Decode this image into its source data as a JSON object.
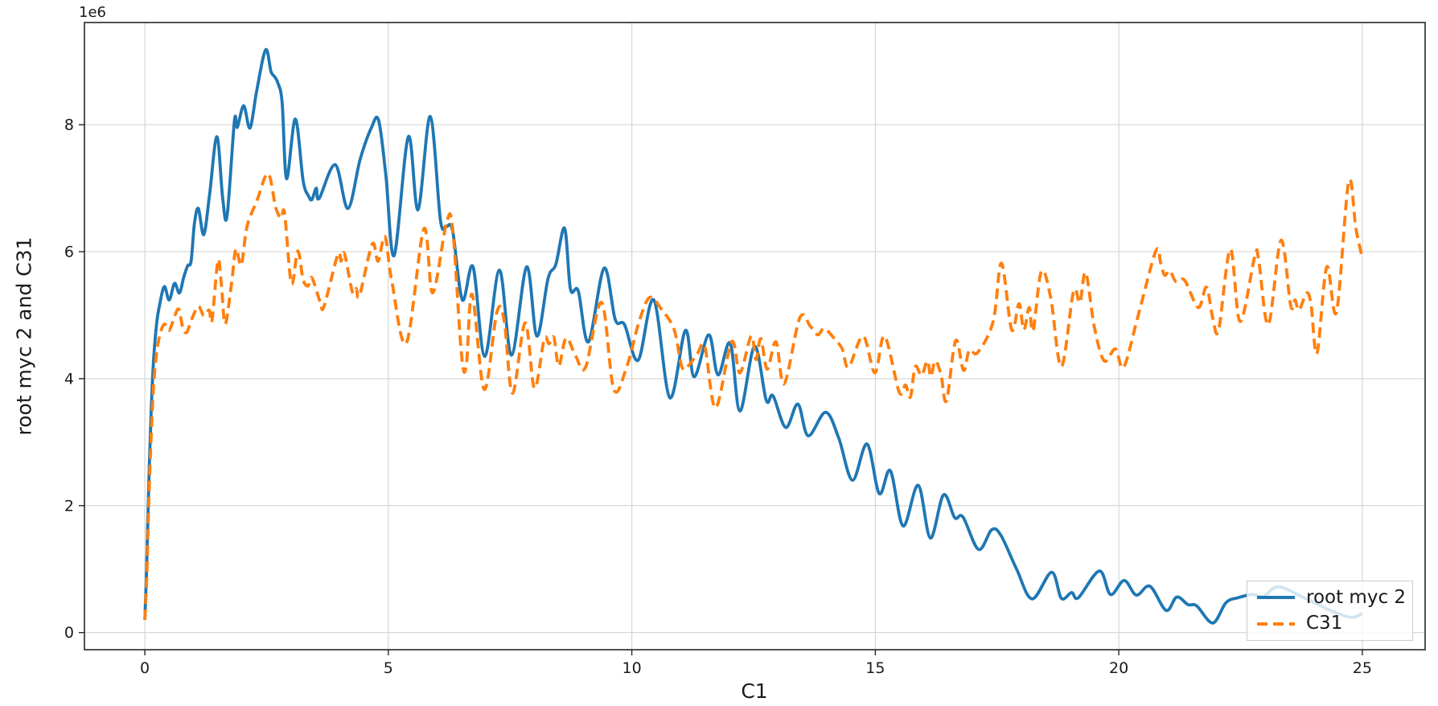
{
  "figure": {
    "y_offset_label": "1e6",
    "xlabel": "C1",
    "ylabel": "root myc 2 and C31",
    "background": "#ffffff",
    "spine_color": "#262626",
    "grid_color": "#d3d3d3"
  },
  "legend": {
    "position": "lower right",
    "items": [
      {
        "label": "root myc 2",
        "color": "#1f77b4",
        "style": "solid"
      },
      {
        "label": "C31",
        "color": "#ff7f0e",
        "style": "dashed"
      }
    ]
  },
  "chart_data": {
    "type": "line",
    "title": "",
    "xlabel": "C1",
    "ylabel": "root myc 2 and C31",
    "y_scale_note": "y values are in units of 1e6",
    "xlim": [
      -1.24,
      26.29
    ],
    "ylim": [
      -0.27,
      9.61
    ],
    "x_ticks": [
      0,
      5,
      10,
      15,
      20,
      25
    ],
    "y_ticks": [
      0,
      2,
      4,
      6,
      8
    ],
    "grid": true,
    "legend_position": "lower right",
    "series": [
      {
        "name": "root myc 2",
        "color": "#1f77b4",
        "line_style": "solid",
        "line_width": 3.8,
        "points": [
          [
            0,
            0.2
          ],
          [
            0.04,
            1.1
          ],
          [
            0.08,
            2.3
          ],
          [
            0.13,
            3.5
          ],
          [
            0.18,
            4.3
          ],
          [
            0.24,
            4.85
          ],
          [
            0.3,
            5.15
          ],
          [
            0.4,
            5.45
          ],
          [
            0.5,
            5.24
          ],
          [
            0.61,
            5.5
          ],
          [
            0.71,
            5.35
          ],
          [
            0.8,
            5.6
          ],
          [
            0.88,
            5.78
          ],
          [
            0.95,
            5.85
          ],
          [
            1.02,
            6.45
          ],
          [
            1.1,
            6.68
          ],
          [
            1.21,
            6.27
          ],
          [
            1.33,
            6.9
          ],
          [
            1.48,
            7.81
          ],
          [
            1.6,
            6.83
          ],
          [
            1.69,
            6.57
          ],
          [
            1.84,
            8.06
          ],
          [
            1.9,
            7.96
          ],
          [
            2.03,
            8.3
          ],
          [
            2.16,
            7.95
          ],
          [
            2.3,
            8.55
          ],
          [
            2.48,
            9.18
          ],
          [
            2.59,
            8.84
          ],
          [
            2.66,
            8.76
          ],
          [
            2.73,
            8.66
          ],
          [
            2.82,
            8.35
          ],
          [
            2.91,
            7.15
          ],
          [
            3.09,
            8.09
          ],
          [
            3.25,
            7.12
          ],
          [
            3.36,
            6.88
          ],
          [
            3.43,
            6.82
          ],
          [
            3.52,
            7.0
          ],
          [
            3.58,
            6.84
          ],
          [
            3.91,
            7.37
          ],
          [
            4.17,
            6.68
          ],
          [
            4.42,
            7.45
          ],
          [
            4.65,
            7.95
          ],
          [
            4.8,
            8.07
          ],
          [
            4.95,
            7.2
          ],
          [
            5.12,
            5.94
          ],
          [
            5.41,
            7.81
          ],
          [
            5.61,
            6.66
          ],
          [
            5.86,
            8.13
          ],
          [
            6.07,
            6.5
          ],
          [
            6.19,
            6.4
          ],
          [
            6.32,
            6.33
          ],
          [
            6.52,
            5.24
          ],
          [
            6.74,
            5.76
          ],
          [
            6.98,
            4.35
          ],
          [
            7.28,
            5.71
          ],
          [
            7.53,
            4.37
          ],
          [
            7.84,
            5.76
          ],
          [
            8.05,
            4.67
          ],
          [
            8.28,
            5.58
          ],
          [
            8.44,
            5.8
          ],
          [
            8.62,
            6.37
          ],
          [
            8.74,
            5.41
          ],
          [
            8.9,
            5.38
          ],
          [
            9.11,
            4.58
          ],
          [
            9.43,
            5.74
          ],
          [
            9.66,
            4.93
          ],
          [
            9.85,
            4.85
          ],
          [
            10.13,
            4.29
          ],
          [
            10.45,
            5.24
          ],
          [
            10.78,
            3.7
          ],
          [
            11.1,
            4.76
          ],
          [
            11.28,
            4.03
          ],
          [
            11.58,
            4.69
          ],
          [
            11.77,
            4.06
          ],
          [
            12.02,
            4.56
          ],
          [
            12.22,
            3.49
          ],
          [
            12.52,
            4.51
          ],
          [
            12.76,
            3.66
          ],
          [
            12.9,
            3.73
          ],
          [
            13.16,
            3.23
          ],
          [
            13.41,
            3.6
          ],
          [
            13.62,
            3.1
          ],
          [
            13.98,
            3.47
          ],
          [
            14.25,
            3.06
          ],
          [
            14.53,
            2.4
          ],
          [
            14.83,
            2.97
          ],
          [
            15.08,
            2.19
          ],
          [
            15.31,
            2.55
          ],
          [
            15.57,
            1.68
          ],
          [
            15.88,
            2.32
          ],
          [
            16.13,
            1.49
          ],
          [
            16.4,
            2.17
          ],
          [
            16.63,
            1.81
          ],
          [
            16.8,
            1.82
          ],
          [
            17.12,
            1.31
          ],
          [
            17.39,
            1.62
          ],
          [
            17.58,
            1.53
          ],
          [
            17.9,
            1.0
          ],
          [
            18.22,
            0.53
          ],
          [
            18.62,
            0.95
          ],
          [
            18.82,
            0.54
          ],
          [
            19.03,
            0.63
          ],
          [
            19.17,
            0.55
          ],
          [
            19.6,
            0.97
          ],
          [
            19.83,
            0.6
          ],
          [
            20.11,
            0.82
          ],
          [
            20.36,
            0.59
          ],
          [
            20.64,
            0.73
          ],
          [
            20.97,
            0.35
          ],
          [
            21.19,
            0.56
          ],
          [
            21.42,
            0.44
          ],
          [
            21.6,
            0.42
          ],
          [
            21.93,
            0.15
          ],
          [
            22.2,
            0.47
          ],
          [
            22.45,
            0.55
          ],
          [
            22.75,
            0.6
          ],
          [
            22.97,
            0.57
          ],
          [
            23.28,
            0.72
          ],
          [
            23.83,
            0.54
          ],
          [
            24.4,
            0.33
          ],
          [
            24.78,
            0.24
          ],
          [
            25,
            0.3
          ]
        ]
      },
      {
        "name": "C31",
        "color": "#ff7f0e",
        "line_style": "dashed",
        "line_width": 3.8,
        "points": [
          [
            0,
            0.2
          ],
          [
            0.04,
            0.9
          ],
          [
            0.08,
            2.0
          ],
          [
            0.13,
            3.1
          ],
          [
            0.18,
            3.9
          ],
          [
            0.25,
            4.45
          ],
          [
            0.33,
            4.75
          ],
          [
            0.41,
            4.86
          ],
          [
            0.5,
            4.76
          ],
          [
            0.62,
            5.0
          ],
          [
            0.7,
            5.09
          ],
          [
            0.78,
            4.8
          ],
          [
            0.86,
            4.73
          ],
          [
            0.97,
            4.95
          ],
          [
            1.1,
            5.14
          ],
          [
            1.21,
            4.99
          ],
          [
            1.32,
            5.08
          ],
          [
            1.38,
            4.92
          ],
          [
            1.5,
            5.86
          ],
          [
            1.57,
            5.5
          ],
          [
            1.65,
            4.86
          ],
          [
            1.78,
            5.5
          ],
          [
            1.87,
            6.04
          ],
          [
            1.98,
            5.79
          ],
          [
            2.1,
            6.4
          ],
          [
            2.3,
            6.8
          ],
          [
            2.53,
            7.23
          ],
          [
            2.69,
            6.69
          ],
          [
            2.8,
            6.53
          ],
          [
            2.87,
            6.6
          ],
          [
            3.01,
            5.5
          ],
          [
            3.14,
            6.01
          ],
          [
            3.25,
            5.56
          ],
          [
            3.35,
            5.46
          ],
          [
            3.43,
            5.59
          ],
          [
            3.6,
            5.21
          ],
          [
            3.68,
            5.14
          ],
          [
            3.96,
            5.95
          ],
          [
            4.03,
            5.85
          ],
          [
            4.1,
            5.97
          ],
          [
            4.26,
            5.37
          ],
          [
            4.34,
            5.42
          ],
          [
            4.41,
            5.31
          ],
          [
            4.67,
            6.12
          ],
          [
            4.79,
            5.85
          ],
          [
            4.93,
            6.24
          ],
          [
            5.07,
            5.54
          ],
          [
            5.37,
            4.56
          ],
          [
            5.73,
            6.36
          ],
          [
            5.91,
            5.35
          ],
          [
            6.19,
            6.44
          ],
          [
            6.32,
            6.37
          ],
          [
            6.5,
            4.4
          ],
          [
            6.6,
            4.2
          ],
          [
            6.72,
            5.33
          ],
          [
            6.97,
            3.83
          ],
          [
            7.23,
            5.05
          ],
          [
            7.38,
            4.9
          ],
          [
            7.55,
            3.77
          ],
          [
            7.81,
            4.88
          ],
          [
            8.0,
            3.85
          ],
          [
            8.2,
            4.62
          ],
          [
            8.3,
            4.55
          ],
          [
            8.4,
            4.65
          ],
          [
            8.5,
            4.2
          ],
          [
            8.65,
            4.64
          ],
          [
            8.85,
            4.35
          ],
          [
            9.05,
            4.18
          ],
          [
            9.38,
            5.2
          ],
          [
            9.63,
            3.83
          ],
          [
            9.9,
            4.2
          ],
          [
            10.15,
            4.9
          ],
          [
            10.37,
            5.28
          ],
          [
            10.62,
            5.08
          ],
          [
            10.87,
            4.77
          ],
          [
            11.03,
            4.18
          ],
          [
            11.18,
            4.22
          ],
          [
            11.35,
            4.4
          ],
          [
            11.5,
            4.5
          ],
          [
            11.72,
            3.54
          ],
          [
            12.05,
            4.58
          ],
          [
            12.22,
            4.09
          ],
          [
            12.45,
            4.67
          ],
          [
            12.55,
            4.3
          ],
          [
            12.65,
            4.63
          ],
          [
            12.78,
            4.15
          ],
          [
            12.96,
            4.58
          ],
          [
            13.13,
            3.92
          ],
          [
            13.45,
            4.96
          ],
          [
            13.67,
            4.82
          ],
          [
            13.82,
            4.69
          ],
          [
            13.95,
            4.79
          ],
          [
            14.15,
            4.64
          ],
          [
            14.32,
            4.47
          ],
          [
            14.45,
            4.18
          ],
          [
            14.75,
            4.67
          ],
          [
            14.99,
            4.09
          ],
          [
            15.19,
            4.67
          ],
          [
            15.49,
            3.79
          ],
          [
            15.62,
            3.9
          ],
          [
            15.72,
            3.71
          ],
          [
            15.82,
            4.19
          ],
          [
            15.95,
            4.05
          ],
          [
            16.07,
            4.28
          ],
          [
            16.14,
            4.03
          ],
          [
            16.23,
            4.28
          ],
          [
            16.35,
            4.06
          ],
          [
            16.46,
            3.65
          ],
          [
            16.65,
            4.6
          ],
          [
            16.81,
            4.13
          ],
          [
            16.93,
            4.45
          ],
          [
            17.1,
            4.41
          ],
          [
            17.42,
            4.9
          ],
          [
            17.59,
            5.82
          ],
          [
            17.8,
            4.77
          ],
          [
            17.95,
            5.18
          ],
          [
            18.05,
            4.77
          ],
          [
            18.16,
            5.12
          ],
          [
            18.24,
            4.76
          ],
          [
            18.41,
            5.69
          ],
          [
            18.6,
            5.28
          ],
          [
            18.82,
            4.19
          ],
          [
            19.07,
            5.37
          ],
          [
            19.2,
            5.2
          ],
          [
            19.32,
            5.67
          ],
          [
            19.5,
            4.8
          ],
          [
            19.7,
            4.28
          ],
          [
            19.93,
            4.47
          ],
          [
            20.1,
            4.18
          ],
          [
            20.4,
            5.0
          ],
          [
            20.76,
            6.01
          ],
          [
            20.86,
            5.82
          ],
          [
            20.94,
            5.63
          ],
          [
            21.05,
            5.7
          ],
          [
            21.17,
            5.53
          ],
          [
            21.35,
            5.55
          ],
          [
            21.63,
            5.12
          ],
          [
            21.8,
            5.44
          ],
          [
            21.93,
            4.95
          ],
          [
            22.05,
            4.77
          ],
          [
            22.29,
            6.04
          ],
          [
            22.49,
            4.9
          ],
          [
            22.79,
            5.92
          ],
          [
            22.87,
            5.88
          ],
          [
            23.07,
            4.85
          ],
          [
            23.33,
            6.18
          ],
          [
            23.53,
            5.15
          ],
          [
            23.62,
            5.24
          ],
          [
            23.7,
            5.08
          ],
          [
            23.86,
            5.35
          ],
          [
            23.95,
            5.15
          ],
          [
            24.07,
            4.4
          ],
          [
            24.27,
            5.76
          ],
          [
            24.47,
            5.05
          ],
          [
            24.72,
            7.1
          ],
          [
            24.87,
            6.36
          ],
          [
            25,
            5.9
          ]
        ]
      }
    ]
  }
}
